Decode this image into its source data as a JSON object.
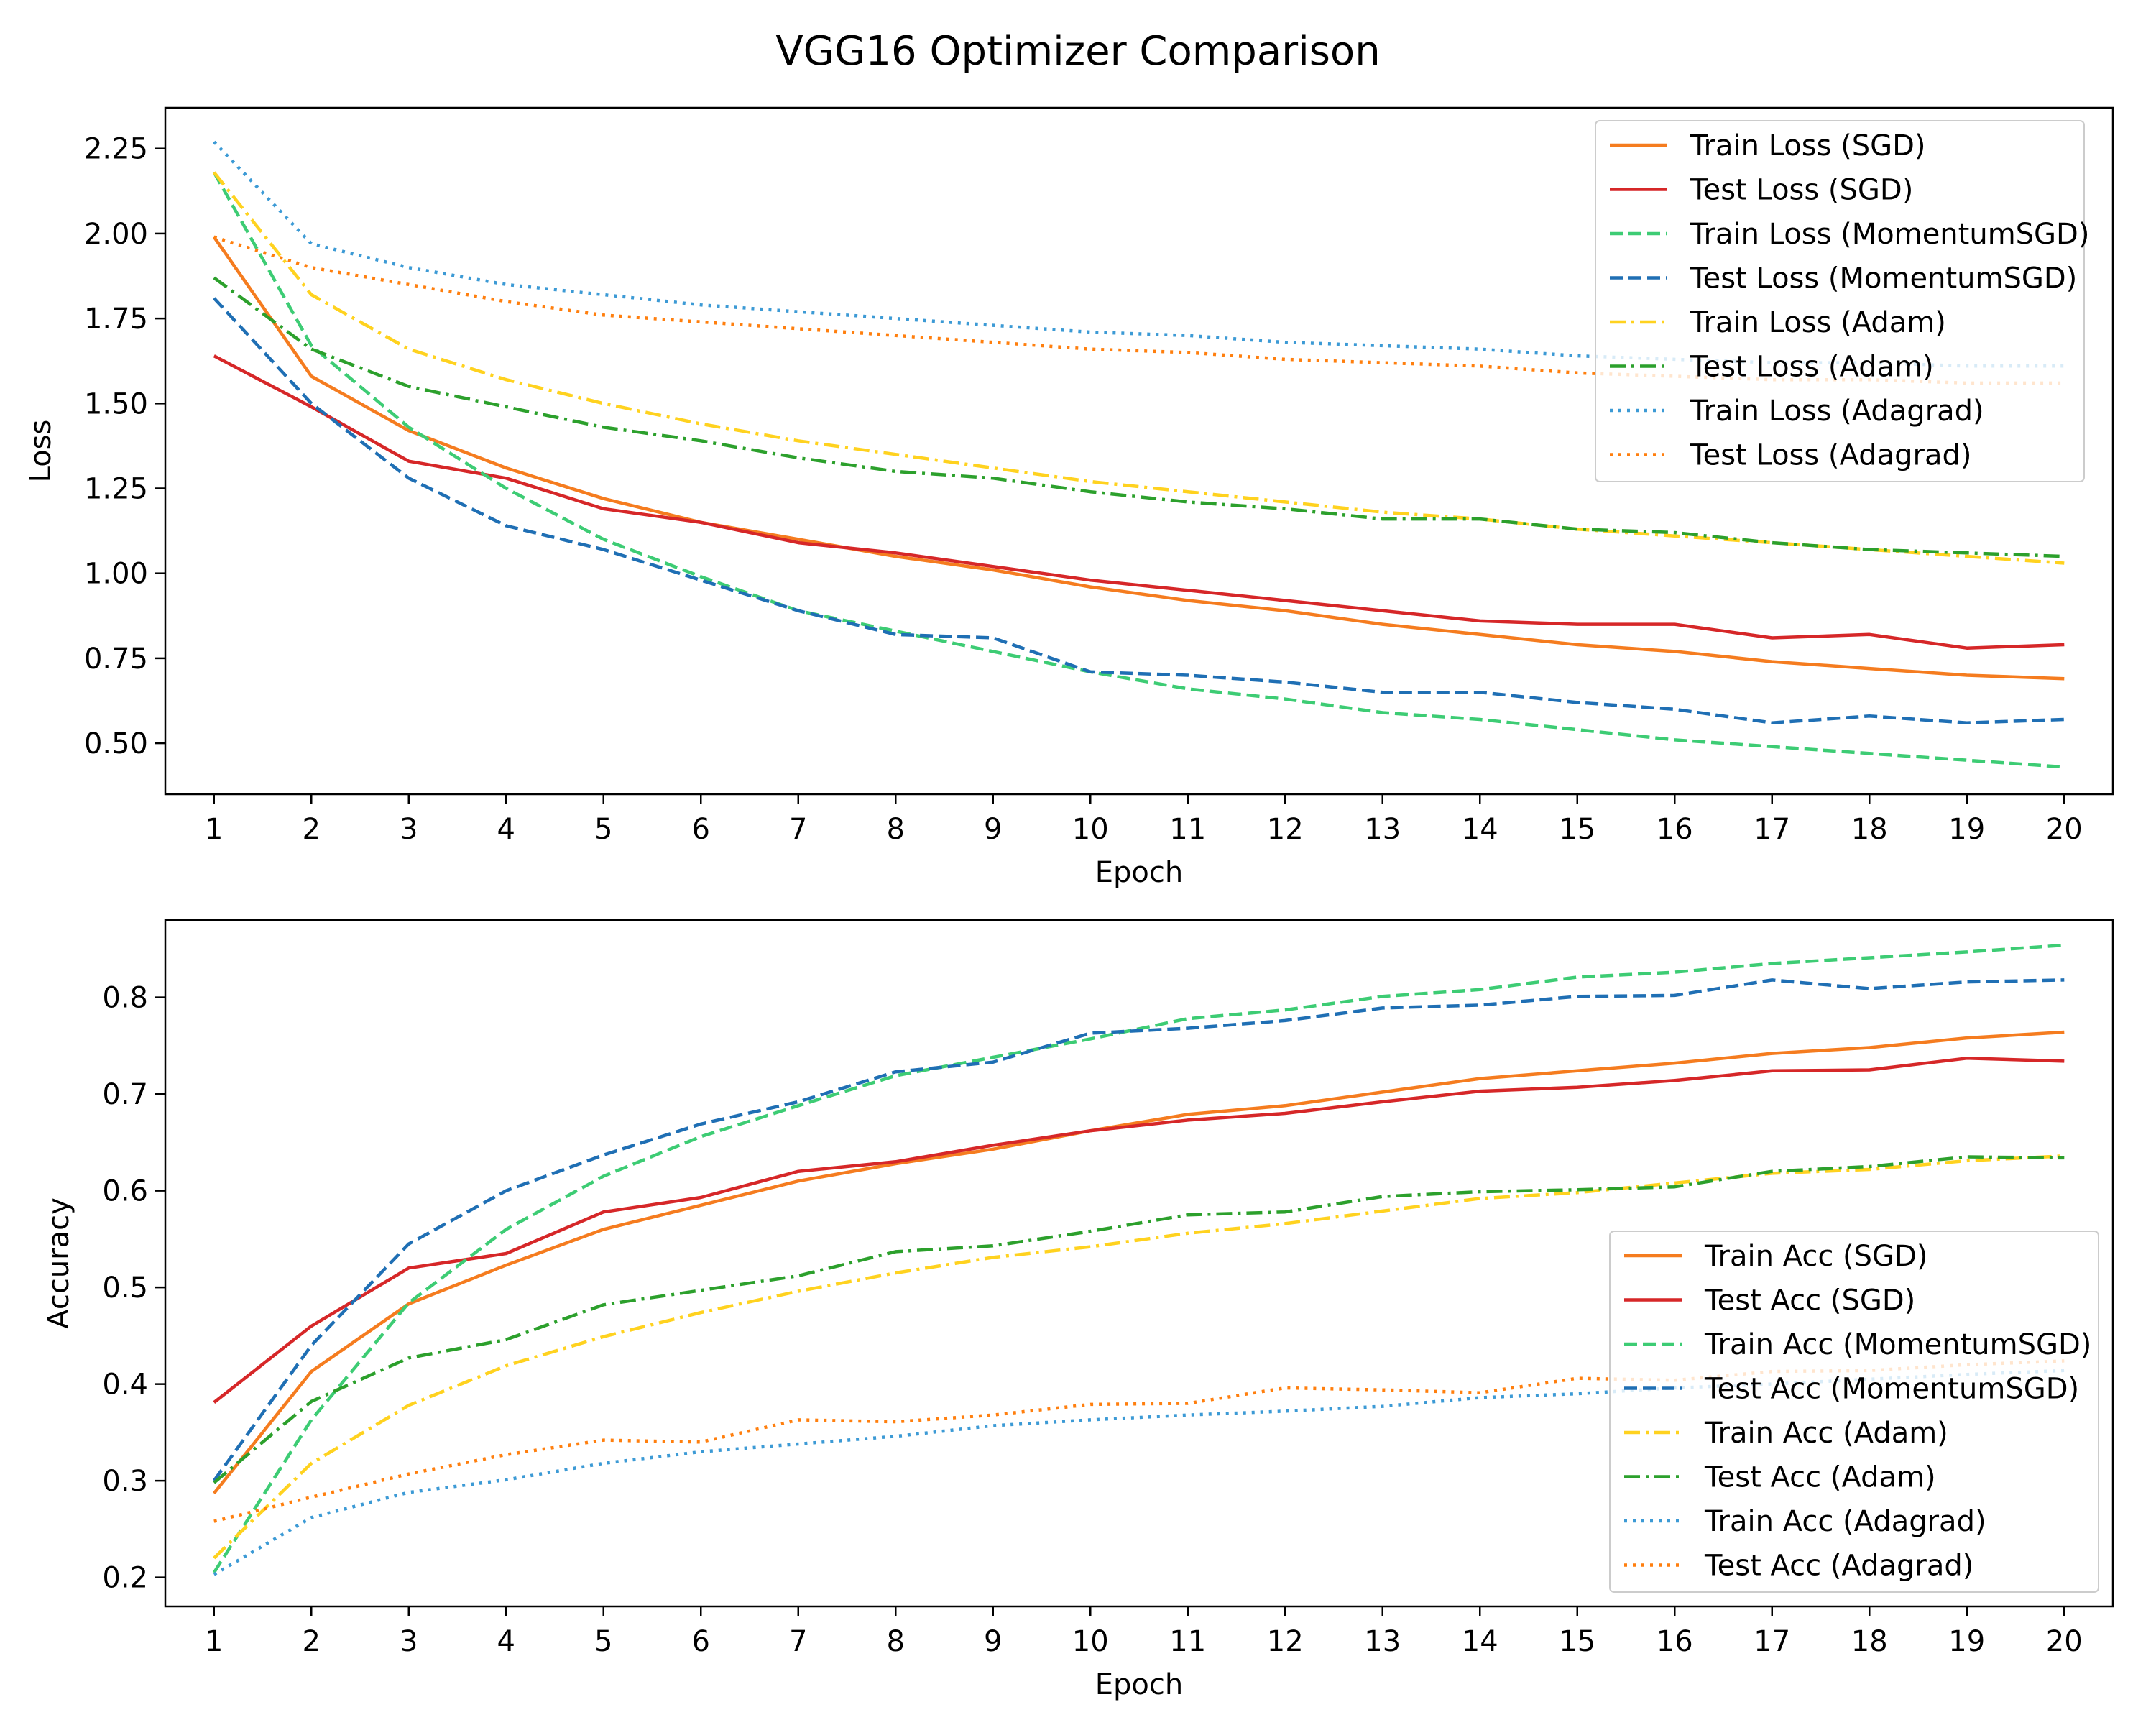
{
  "figure": {
    "title": "VGG16 Optimizer Comparison"
  },
  "chart_data": [
    {
      "type": "line",
      "xlabel": "Epoch",
      "ylabel": "Loss",
      "x": [
        1,
        2,
        3,
        4,
        5,
        6,
        7,
        8,
        9,
        10,
        11,
        12,
        13,
        14,
        15,
        16,
        17,
        18,
        19,
        20
      ],
      "xlim": [
        0.5,
        20.5
      ],
      "ylim": [
        0.35,
        2.37
      ],
      "yticks": [
        0.5,
        0.75,
        1.0,
        1.25,
        1.5,
        1.75,
        2.0,
        2.25
      ],
      "ytick_labels": [
        "0.50",
        "0.75",
        "1.00",
        "1.25",
        "1.50",
        "1.75",
        "2.00",
        "2.25"
      ],
      "grid": false,
      "legend_position": "top-right",
      "series": [
        {
          "name": "Train Loss (SGD)",
          "color": "#f57c1f",
          "style": "solid",
          "values": [
            1.99,
            1.58,
            1.42,
            1.31,
            1.22,
            1.15,
            1.1,
            1.05,
            1.01,
            0.96,
            0.92,
            0.89,
            0.85,
            0.82,
            0.79,
            0.77,
            0.74,
            0.72,
            0.7,
            0.69
          ]
        },
        {
          "name": "Test Loss (SGD)",
          "color": "#d62728",
          "style": "solid",
          "values": [
            1.64,
            1.49,
            1.33,
            1.28,
            1.19,
            1.15,
            1.09,
            1.06,
            1.02,
            0.98,
            0.95,
            0.92,
            0.89,
            0.86,
            0.85,
            0.85,
            0.81,
            0.82,
            0.78,
            0.79
          ]
        },
        {
          "name": "Train Loss (MomentumSGD)",
          "color": "#3dcc74",
          "style": "dashed",
          "values": [
            2.18,
            1.67,
            1.43,
            1.25,
            1.1,
            0.99,
            0.89,
            0.83,
            0.77,
            0.71,
            0.66,
            0.63,
            0.59,
            0.57,
            0.54,
            0.51,
            0.49,
            0.47,
            0.45,
            0.43
          ]
        },
        {
          "name": "Test Loss (MomentumSGD)",
          "color": "#1f6fb4",
          "style": "dashed",
          "values": [
            1.81,
            1.5,
            1.28,
            1.14,
            1.07,
            0.98,
            0.89,
            0.82,
            0.81,
            0.71,
            0.7,
            0.68,
            0.65,
            0.65,
            0.62,
            0.6,
            0.56,
            0.58,
            0.56,
            0.57
          ]
        },
        {
          "name": "Train Loss (Adam)",
          "color": "#ffd21f",
          "style": "dashdot",
          "values": [
            2.18,
            1.82,
            1.66,
            1.57,
            1.5,
            1.44,
            1.39,
            1.35,
            1.31,
            1.27,
            1.24,
            1.21,
            1.18,
            1.16,
            1.13,
            1.11,
            1.09,
            1.07,
            1.05,
            1.03
          ]
        },
        {
          "name": "Test Loss (Adam)",
          "color": "#2ca02c",
          "style": "dashdot",
          "values": [
            1.87,
            1.66,
            1.55,
            1.49,
            1.43,
            1.39,
            1.34,
            1.3,
            1.28,
            1.24,
            1.21,
            1.19,
            1.16,
            1.16,
            1.13,
            1.12,
            1.09,
            1.07,
            1.06,
            1.05
          ]
        },
        {
          "name": "Train Loss (Adagrad)",
          "color": "#3c9ad5",
          "style": "dotted",
          "values": [
            2.27,
            1.97,
            1.9,
            1.85,
            1.82,
            1.79,
            1.77,
            1.75,
            1.73,
            1.71,
            1.7,
            1.68,
            1.67,
            1.66,
            1.64,
            1.63,
            1.62,
            1.62,
            1.61,
            1.61
          ]
        },
        {
          "name": "Test Loss (Adagrad)",
          "color": "#ff7f0e",
          "style": "dotted",
          "values": [
            1.99,
            1.9,
            1.85,
            1.8,
            1.76,
            1.74,
            1.72,
            1.7,
            1.68,
            1.66,
            1.65,
            1.63,
            1.62,
            1.61,
            1.59,
            1.58,
            1.57,
            1.57,
            1.56,
            1.56
          ]
        }
      ]
    },
    {
      "type": "line",
      "xlabel": "Epoch",
      "ylabel": "Accuracy",
      "x": [
        1,
        2,
        3,
        4,
        5,
        6,
        7,
        8,
        9,
        10,
        11,
        12,
        13,
        14,
        15,
        16,
        17,
        18,
        19,
        20
      ],
      "xlim": [
        0.5,
        20.5
      ],
      "ylim": [
        0.17,
        0.88
      ],
      "yticks": [
        0.2,
        0.3,
        0.4,
        0.5,
        0.6,
        0.7,
        0.8
      ],
      "ytick_labels": [
        "0.2",
        "0.3",
        "0.4",
        "0.5",
        "0.6",
        "0.7",
        "0.8"
      ],
      "grid": false,
      "legend_position": "lower-right",
      "series": [
        {
          "name": "Train Acc (SGD)",
          "color": "#f57c1f",
          "style": "solid",
          "values": [
            0.287,
            0.413,
            0.483,
            0.523,
            0.56,
            0.585,
            0.61,
            0.628,
            0.643,
            0.662,
            0.679,
            0.688,
            0.702,
            0.716,
            0.724,
            0.732,
            0.742,
            0.748,
            0.758,
            0.764
          ]
        },
        {
          "name": "Test Acc (SGD)",
          "color": "#d62728",
          "style": "solid",
          "values": [
            0.381,
            0.46,
            0.52,
            0.535,
            0.578,
            0.593,
            0.62,
            0.63,
            0.647,
            0.662,
            0.673,
            0.68,
            0.692,
            0.703,
            0.707,
            0.714,
            0.724,
            0.725,
            0.737,
            0.734
          ]
        },
        {
          "name": "Train Acc (MomentumSGD)",
          "color": "#3dcc74",
          "style": "dashed",
          "values": [
            0.205,
            0.363,
            0.484,
            0.56,
            0.615,
            0.656,
            0.688,
            0.719,
            0.738,
            0.757,
            0.778,
            0.787,
            0.801,
            0.808,
            0.821,
            0.826,
            0.835,
            0.841,
            0.847,
            0.854
          ]
        },
        {
          "name": "Test Acc (MomentumSGD)",
          "color": "#1f6fb4",
          "style": "dashed",
          "values": [
            0.3,
            0.44,
            0.545,
            0.6,
            0.637,
            0.669,
            0.692,
            0.723,
            0.733,
            0.763,
            0.768,
            0.776,
            0.789,
            0.792,
            0.801,
            0.802,
            0.818,
            0.809,
            0.816,
            0.818
          ]
        },
        {
          "name": "Train Acc (Adam)",
          "color": "#ffd21f",
          "style": "dashdot",
          "values": [
            0.22,
            0.318,
            0.378,
            0.419,
            0.449,
            0.474,
            0.496,
            0.515,
            0.531,
            0.542,
            0.556,
            0.566,
            0.579,
            0.592,
            0.598,
            0.608,
            0.618,
            0.622,
            0.631,
            0.636
          ]
        },
        {
          "name": "Test Acc (Adam)",
          "color": "#2ca02c",
          "style": "dashdot",
          "values": [
            0.298,
            0.382,
            0.427,
            0.446,
            0.482,
            0.497,
            0.512,
            0.537,
            0.543,
            0.558,
            0.575,
            0.578,
            0.594,
            0.599,
            0.601,
            0.604,
            0.62,
            0.625,
            0.635,
            0.634
          ]
        },
        {
          "name": "Train Acc (Adagrad)",
          "color": "#3c9ad5",
          "style": "dotted",
          "values": [
            0.203,
            0.262,
            0.288,
            0.301,
            0.318,
            0.33,
            0.338,
            0.346,
            0.357,
            0.363,
            0.368,
            0.372,
            0.377,
            0.386,
            0.39,
            0.396,
            0.4,
            0.405,
            0.41,
            0.414
          ]
        },
        {
          "name": "Test Acc (Adagrad)",
          "color": "#ff7f0e",
          "style": "dotted",
          "values": [
            0.258,
            0.283,
            0.307,
            0.327,
            0.342,
            0.34,
            0.363,
            0.361,
            0.368,
            0.379,
            0.38,
            0.396,
            0.394,
            0.391,
            0.406,
            0.404,
            0.413,
            0.414,
            0.42,
            0.424
          ]
        }
      ]
    }
  ]
}
